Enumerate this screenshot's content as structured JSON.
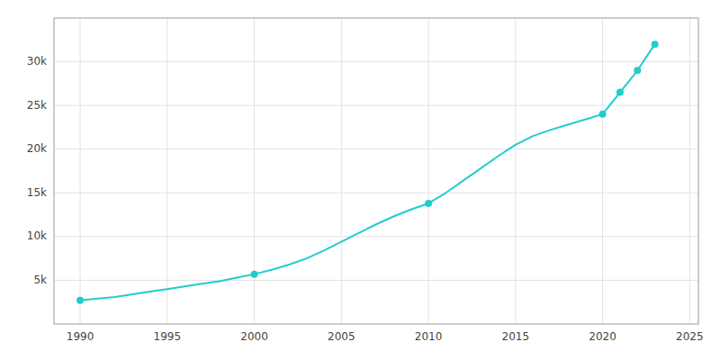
{
  "chart_data": {
    "type": "line",
    "x": [
      1990,
      1991,
      1992,
      1993,
      1994,
      1995,
      1996,
      1997,
      1998,
      1999,
      2000,
      2001,
      2002,
      2003,
      2004,
      2005,
      2006,
      2007,
      2008,
      2009,
      2010,
      2011,
      2012,
      2013,
      2014,
      2015,
      2016,
      2017,
      2018,
      2019,
      2020,
      2021,
      2022,
      2023
    ],
    "series": [
      {
        "color": "#22CCCC",
        "line_style": "solid",
        "values": [
          2700,
          2900,
          3100,
          3400,
          3700,
          4000,
          4300,
          4600,
          4900,
          5300,
          5700,
          6200,
          6800,
          7500,
          8400,
          9400,
          10400,
          11400,
          12300,
          13100,
          13800,
          15000,
          16400,
          17800,
          19200,
          20500,
          21500,
          22200,
          22800,
          23400,
          24000,
          26500,
          29000,
          32000
        ]
      },
      {
        "type": "scatter",
        "marker": "circle",
        "color": "#22CCCC",
        "values": [
          2700,
          null,
          null,
          null,
          null,
          null,
          null,
          null,
          null,
          null,
          5700,
          null,
          null,
          null,
          null,
          null,
          null,
          null,
          null,
          null,
          13800,
          null,
          null,
          null,
          null,
          null,
          null,
          null,
          null,
          null,
          24000,
          26500,
          29000,
          32000
        ]
      }
    ],
    "xlim": [
      1988.5,
      2025.5
    ],
    "xticks": [
      1990,
      1995,
      2000,
      2005,
      2010,
      2015,
      2020,
      2025
    ],
    "ylim": [
      0,
      35000
    ],
    "yticks": [
      {
        "value": 5000,
        "label": "5k"
      },
      {
        "value": 10000,
        "label": "10k"
      },
      {
        "value": 15000,
        "label": "15k"
      },
      {
        "value": 20000,
        "label": "20k"
      },
      {
        "value": 25000,
        "label": "25k"
      },
      {
        "value": 30000,
        "label": "30k"
      }
    ],
    "grid": true
  }
}
